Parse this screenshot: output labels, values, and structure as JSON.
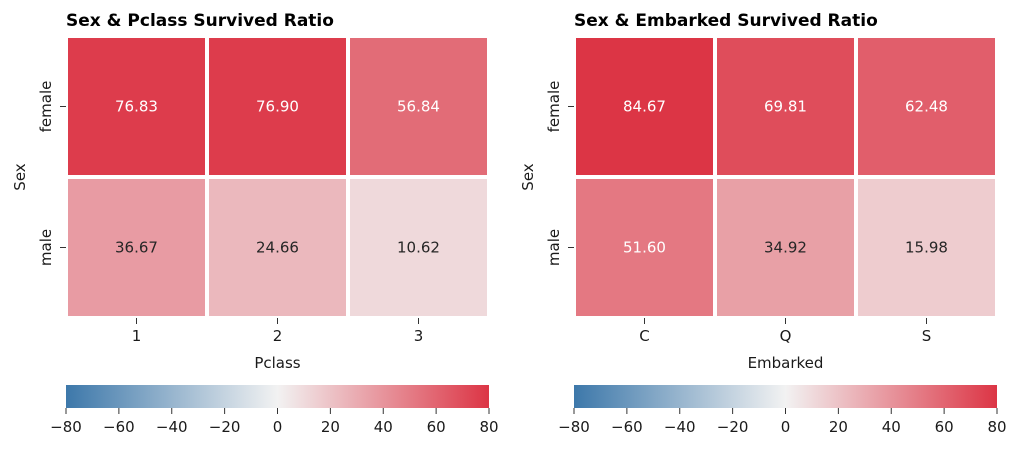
{
  "chart_data": [
    {
      "type": "heatmap",
      "title": "Sex & Pclass Survived Ratio",
      "xlabel": "Pclass",
      "ylabel": "Sex",
      "x_categories": [
        "1",
        "2",
        "3"
      ],
      "y_categories": [
        "female",
        "male"
      ],
      "values": [
        [
          76.83,
          76.9,
          56.84
        ],
        [
          36.67,
          24.66,
          10.62
        ]
      ],
      "colorbar": {
        "orientation": "horizontal",
        "placement": "bottom",
        "range": [
          -80,
          80
        ],
        "ticks": [
          -80,
          -60,
          -40,
          -20,
          0,
          20,
          40,
          60,
          80
        ]
      }
    },
    {
      "type": "heatmap",
      "title": "Sex & Embarked Survived Ratio",
      "xlabel": "Embarked",
      "ylabel": "Sex",
      "x_categories": [
        "C",
        "Q",
        "S"
      ],
      "y_categories": [
        "female",
        "male"
      ],
      "values": [
        [
          84.67,
          69.81,
          62.48
        ],
        [
          51.6,
          34.92,
          15.98
        ]
      ],
      "colorbar": {
        "orientation": "horizontal",
        "placement": "bottom",
        "range": [
          -80,
          80
        ],
        "ticks": [
          -80,
          -60,
          -40,
          -20,
          0,
          20,
          40,
          60,
          80
        ]
      }
    }
  ],
  "colors": {
    "low": "#3d78aa",
    "mid": "#f2f2f2",
    "high": "#dc3545",
    "grid_line": "#ffffff",
    "text_dark": "#262626",
    "text_light": "#ffffff"
  }
}
